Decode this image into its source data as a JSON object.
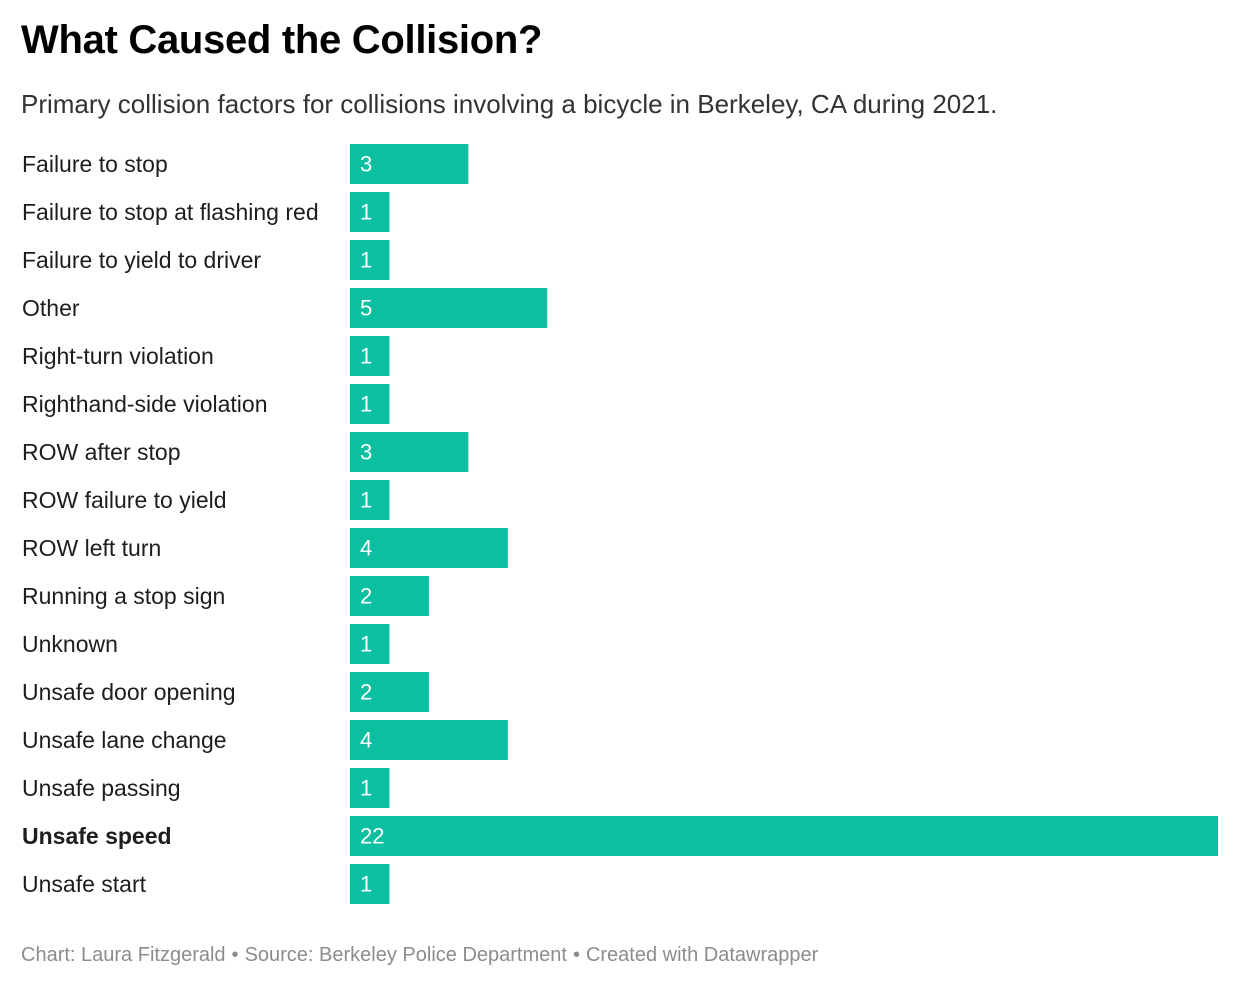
{
  "title": "What Caused the Collision?",
  "subtitle": "Primary collision factors for collisions involving a bicycle in Berkeley, CA during 2021.",
  "footer": {
    "chart_credit": "Chart: Laura Fitzgerald",
    "source": "Source: Berkeley Police Department",
    "created_with": "Created with Datawrapper",
    "separator": "•"
  },
  "colors": {
    "bar": "#0bbfa1",
    "value_text": "#ffffff",
    "footer_text": "#8c8c8c"
  },
  "chart_data": {
    "type": "bar",
    "orientation": "horizontal",
    "categories": [
      "Failure to stop",
      "Failure to stop at flashing red",
      "Failure to yield to driver",
      "Other",
      "Right-turn violation",
      "Righthand-side violation",
      "ROW after stop",
      "ROW failure to yield",
      "ROW left turn",
      "Running a stop sign",
      "Unknown",
      "Unsafe door opening",
      "Unsafe lane change",
      "Unsafe passing",
      "Unsafe speed",
      "Unsafe start"
    ],
    "values": [
      3,
      1,
      1,
      5,
      1,
      1,
      3,
      1,
      4,
      2,
      1,
      2,
      4,
      1,
      22,
      1
    ],
    "highlighted_category": "Unsafe speed",
    "xlim": [
      0,
      22
    ],
    "data_labels": true,
    "grid": false,
    "legend": "none"
  }
}
